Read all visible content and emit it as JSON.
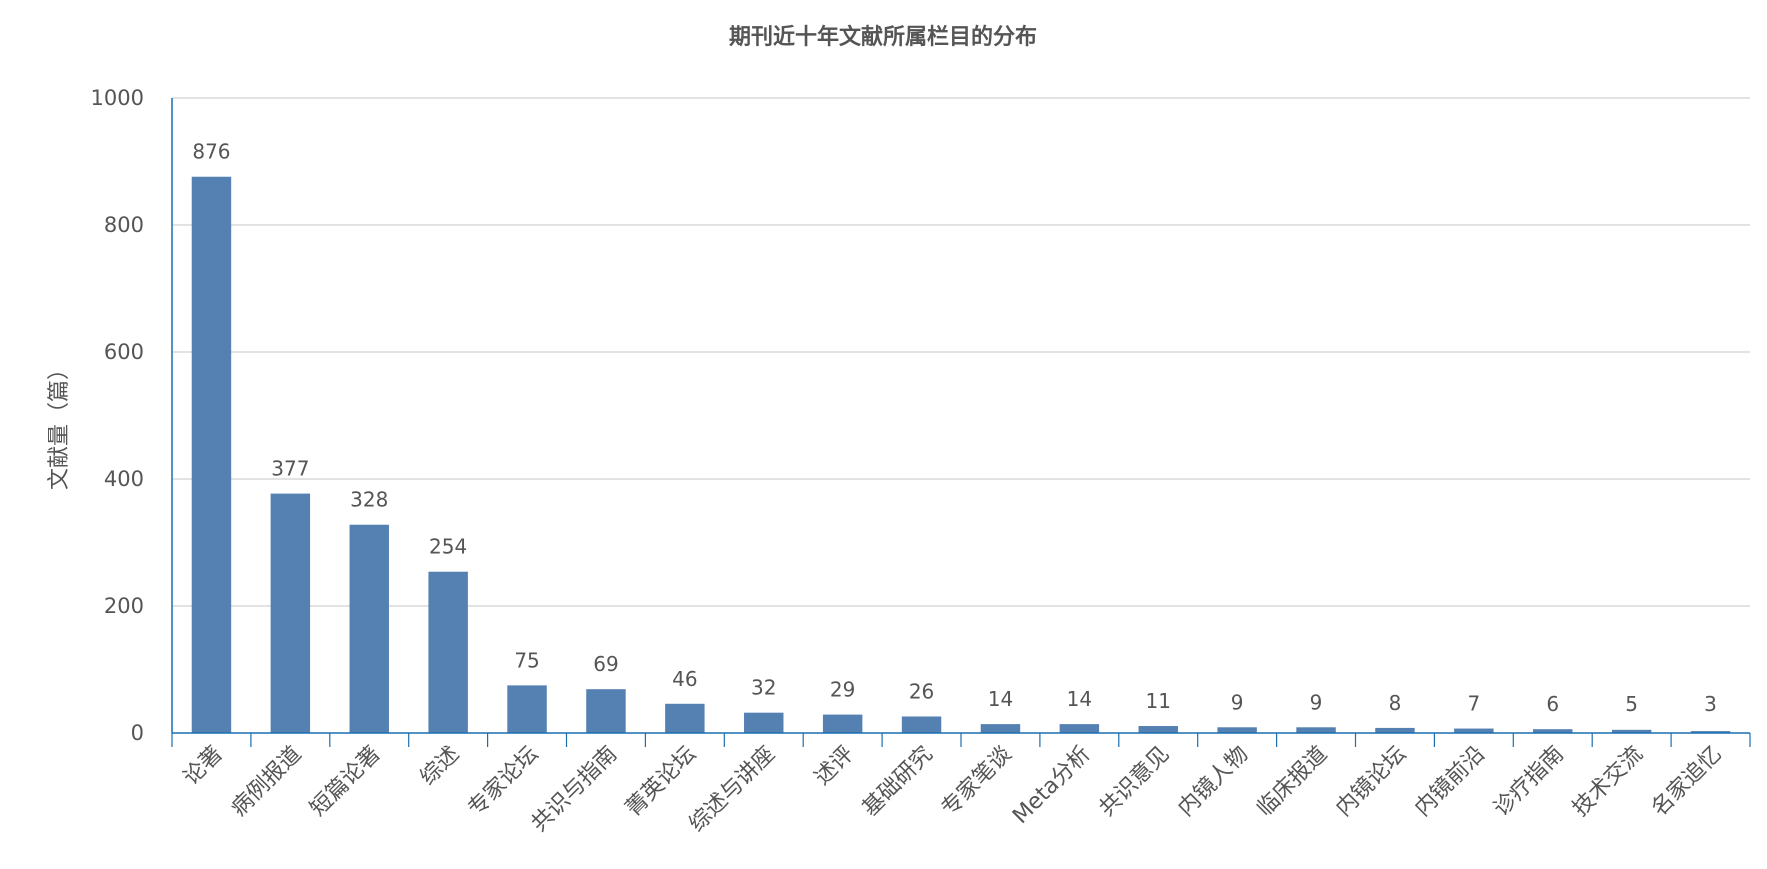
{
  "chart_data": {
    "type": "bar",
    "title": "期刊近十年文献所属栏目的分布",
    "ylabel": "文献量（篇）",
    "xlabel": "",
    "ylim": [
      0,
      1000
    ],
    "yticks": [
      0,
      200,
      400,
      600,
      800,
      1000
    ],
    "grid": true,
    "bar_color": "#5580b2",
    "axis_color": "#1a6fb0",
    "grid_color": "#d0d0d0",
    "categories": [
      "论著",
      "病例报道",
      "短篇论著",
      "综述",
      "专家论坛",
      "共识与指南",
      "菁英论坛",
      "综述与讲座",
      "述评",
      "基础研究",
      "专家笔谈",
      "Meta分析",
      "共识意见",
      "内镜人物",
      "临床报道",
      "内镜论坛",
      "内镜前沿",
      "诊疗指南",
      "技术交流",
      "名家追忆"
    ],
    "values": [
      876,
      377,
      328,
      254,
      75,
      69,
      46,
      32,
      29,
      26,
      14,
      14,
      11,
      9,
      9,
      8,
      7,
      6,
      5,
      3
    ]
  }
}
